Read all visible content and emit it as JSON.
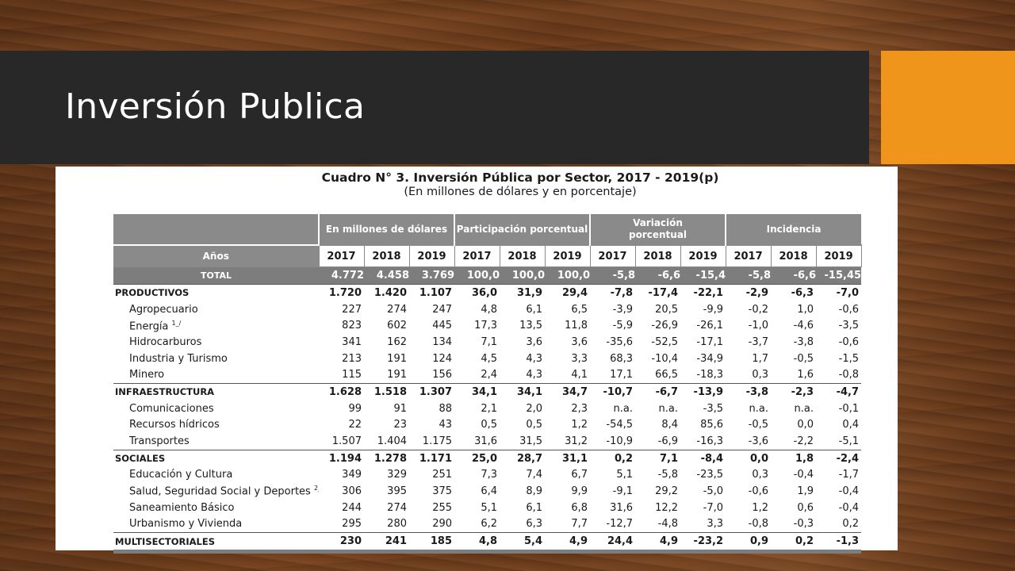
{
  "slide": {
    "title": "Inversión Publica",
    "colors": {
      "title_bar": "#282828",
      "accent": "#f0951b",
      "header_gray": "#8a8a8a"
    }
  },
  "table": {
    "caption": "Cuadro N° 3. Inversión Pública por Sector, 2017 - 2019(p)",
    "subcaption": "(En millones de dólares y en porcentaje)",
    "group_headers": [
      "En millones de dólares",
      "Participación porcentual",
      "Variación porcentual",
      "Incidencia"
    ],
    "row_header": "Años",
    "years": [
      "2017",
      "2018",
      "2019",
      "2017",
      "2018",
      "2019",
      "2017",
      "2018",
      "2019",
      "2017",
      "2018",
      "2019"
    ],
    "total": {
      "label": "TOTAL",
      "values": [
        "4.772",
        "4.458",
        "3.769",
        "100,0",
        "100,0",
        "100,0",
        "-5,8",
        "-6,6",
        "-15,4",
        "-5,8",
        "-6,6",
        "-15,45"
      ]
    },
    "rows": [
      {
        "label": "PRODUCTIVOS",
        "values": [
          "1.720",
          "1.420",
          "1.107",
          "36,0",
          "31,9",
          "29,4",
          "-7,8",
          "-17,4",
          "-22,1",
          "-2,9",
          "-6,3",
          "-7,0"
        ]
      },
      {
        "label": "Agropecuario",
        "values": [
          "227",
          "274",
          "247",
          "4,8",
          "6,1",
          "6,5",
          "-3,9",
          "20,5",
          "-9,9",
          "-0,2",
          "1,0",
          "-0,6"
        ]
      },
      {
        "label": "Energía",
        "note": "1_/",
        "values": [
          "823",
          "602",
          "445",
          "17,3",
          "13,5",
          "11,8",
          "-5,9",
          "-26,9",
          "-26,1",
          "-1,0",
          "-4,6",
          "-3,5"
        ]
      },
      {
        "label": "Hidrocarburos",
        "values": [
          "341",
          "162",
          "134",
          "7,1",
          "3,6",
          "3,6",
          "-35,6",
          "-52,5",
          "-17,1",
          "-3,7",
          "-3,8",
          "-0,6"
        ]
      },
      {
        "label": "Industria y Turismo",
        "values": [
          "213",
          "191",
          "124",
          "4,5",
          "4,3",
          "3,3",
          "68,3",
          "-10,4",
          "-34,9",
          "1,7",
          "-0,5",
          "-1,5"
        ]
      },
      {
        "label": "Minero",
        "values": [
          "115",
          "191",
          "156",
          "2,4",
          "4,3",
          "4,1",
          "17,1",
          "66,5",
          "-18,3",
          "0,3",
          "1,6",
          "-0,8"
        ]
      },
      {
        "label": "INFRAESTRUCTURA",
        "values": [
          "1.628",
          "1.518",
          "1.307",
          "34,1",
          "34,1",
          "34,7",
          "-10,7",
          "-6,7",
          "-13,9",
          "-3,8",
          "-2,3",
          "-4,7"
        ]
      },
      {
        "label": "Comunicaciones",
        "values": [
          "99",
          "91",
          "88",
          "2,1",
          "2,0",
          "2,3",
          "n.a.",
          "n.a.",
          "-3,5",
          "n.a.",
          "n.a.",
          "-0,1"
        ]
      },
      {
        "label": "Recursos hídricos",
        "values": [
          "22",
          "23",
          "43",
          "0,5",
          "0,5",
          "1,2",
          "-54,5",
          "8,4",
          "85,6",
          "-0,5",
          "0,0",
          "0,4"
        ]
      },
      {
        "label": "Transportes",
        "values": [
          "1.507",
          "1.404",
          "1.175",
          "31,6",
          "31,5",
          "31,2",
          "-10,9",
          "-6,9",
          "-16,3",
          "-3,6",
          "-2,2",
          "-5,1"
        ]
      },
      {
        "label": "SOCIALES",
        "values": [
          "1.194",
          "1.278",
          "1.171",
          "25,0",
          "28,7",
          "31,1",
          "0,2",
          "7,1",
          "-8,4",
          "0,0",
          "1,8",
          "-2,4"
        ]
      },
      {
        "label": "Educación y Cultura",
        "values": [
          "349",
          "329",
          "251",
          "7,3",
          "7,4",
          "6,7",
          "5,1",
          "-5,8",
          "-23,5",
          "0,3",
          "-0,4",
          "-1,7"
        ]
      },
      {
        "label": "Salud, Seguridad Social y Deportes",
        "note": "2_/",
        "values": [
          "306",
          "395",
          "375",
          "6,4",
          "8,9",
          "9,9",
          "-9,1",
          "29,2",
          "-5,0",
          "-0,6",
          "1,9",
          "-0,4"
        ]
      },
      {
        "label": "Saneamiento Básico",
        "values": [
          "244",
          "274",
          "255",
          "5,1",
          "6,1",
          "6,8",
          "31,6",
          "12,2",
          "-7,0",
          "1,2",
          "0,6",
          "-0,4"
        ]
      },
      {
        "label": "Urbanismo y Vivienda",
        "values": [
          "295",
          "280",
          "290",
          "6,2",
          "6,3",
          "7,7",
          "-12,7",
          "-4,8",
          "3,3",
          "-0,8",
          "-0,3",
          "0,2"
        ]
      },
      {
        "label": "MULTISECTORIALES",
        "values": [
          "230",
          "241",
          "185",
          "4,8",
          "5,4",
          "4,9",
          "24,4",
          "4,9",
          "-23,2",
          "0,9",
          "0,2",
          "-1,3"
        ]
      }
    ]
  }
}
